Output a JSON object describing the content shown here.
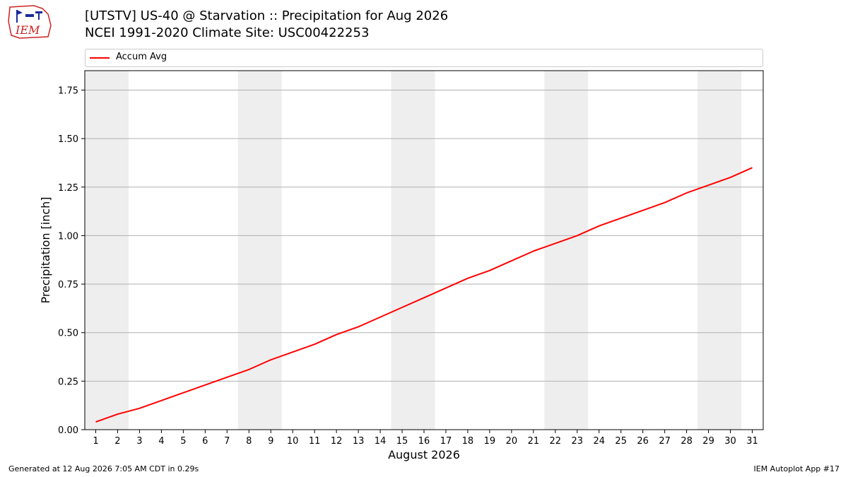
{
  "header": {
    "logo_text": "IEM",
    "title_line1": "[UTSTV] US-40 @ Starvation  :: Precipitation for Aug 2026",
    "title_line2": "NCEI 1991-2020 Climate Site: USC00422253"
  },
  "footer": {
    "left": "Generated at 12 Aug 2026 7:05 AM CDT in 0.29s",
    "right": "IEM Autoplot App #17"
  },
  "colors": {
    "series_line": "#ff0000",
    "weekend_shade": "#eeeeee",
    "grid": "#b0b0b0",
    "logo_red": "#cc2222",
    "logo_blue": "#1a2a9a"
  },
  "chart_data": {
    "type": "line",
    "title": "[UTSTV] US-40 @ Starvation  :: Precipitation for Aug 2026",
    "subtitle": "NCEI 1991-2020 Climate Site: USC00422253",
    "xlabel": "August 2026",
    "ylabel": "Precipitation [inch]",
    "x": [
      1,
      2,
      3,
      4,
      5,
      6,
      7,
      8,
      9,
      10,
      11,
      12,
      13,
      14,
      15,
      16,
      17,
      18,
      19,
      20,
      21,
      22,
      23,
      24,
      25,
      26,
      27,
      28,
      29,
      30,
      31
    ],
    "xlim": [
      0.5,
      31.5
    ],
    "ylim": [
      0,
      1.85
    ],
    "yticks": [
      0,
      0.25,
      0.5,
      0.75,
      1.0,
      1.25,
      1.5,
      1.75
    ],
    "ytick_labels": [
      "0.00",
      "0.25",
      "0.50",
      "0.75",
      "1.00",
      "1.25",
      "1.50",
      "1.75"
    ],
    "grid": "horizontal",
    "legend_position": "top",
    "shaded_ranges": [
      [
        0.5,
        2.5
      ],
      [
        7.5,
        9.5
      ],
      [
        14.5,
        16.5
      ],
      [
        21.5,
        23.5
      ],
      [
        28.5,
        30.5
      ]
    ],
    "series": [
      {
        "name": "Accum Avg",
        "values": [
          0.04,
          0.08,
          0.11,
          0.15,
          0.19,
          0.23,
          0.27,
          0.31,
          0.36,
          0.4,
          0.44,
          0.49,
          0.53,
          0.58,
          0.63,
          0.68,
          0.73,
          0.78,
          0.82,
          0.87,
          0.92,
          0.96,
          1.0,
          1.05,
          1.09,
          1.13,
          1.17,
          1.22,
          1.26,
          1.3,
          1.35
        ]
      }
    ]
  }
}
